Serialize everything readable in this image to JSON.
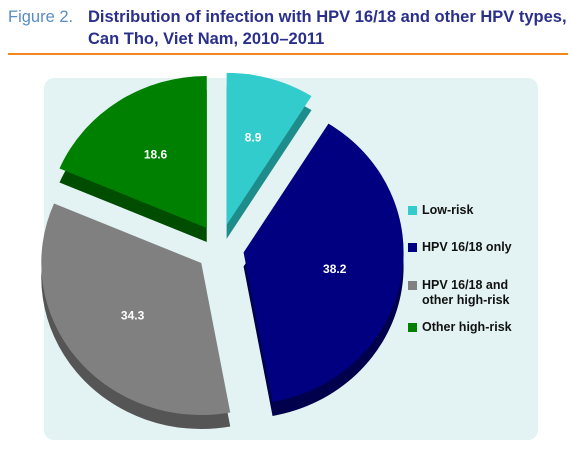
{
  "figure": {
    "label": "Figure 2.",
    "title_line1": "Distribution of infection with HPV 16/18 and other HPV types,",
    "title_line2": "Can Tho, Viet Nam, 2010–2011"
  },
  "chart_data": {
    "type": "pie",
    "title": "Distribution of infection with HPV 16/18 and other HPV types, Can Tho, Viet Nam, 2010–2011",
    "slices": [
      {
        "name": "Low-risk",
        "value": 8.9,
        "label": "8.9",
        "color": "#33cccc",
        "side_color": "#1f8c8c"
      },
      {
        "name": "HPV 16/18 only",
        "value": 38.2,
        "label": "38.2",
        "color": "#000080",
        "side_color": "#00004d"
      },
      {
        "name": "HPV 16/18 and\nother high-risk",
        "value": 34.3,
        "label": "34.3",
        "color": "#808080",
        "side_color": "#555555"
      },
      {
        "name": "Other high-risk",
        "value": 18.6,
        "label": "18.6",
        "color": "#008000",
        "side_color": "#004d00"
      }
    ],
    "legend_position": "right",
    "exploded": true,
    "style": "3d"
  }
}
